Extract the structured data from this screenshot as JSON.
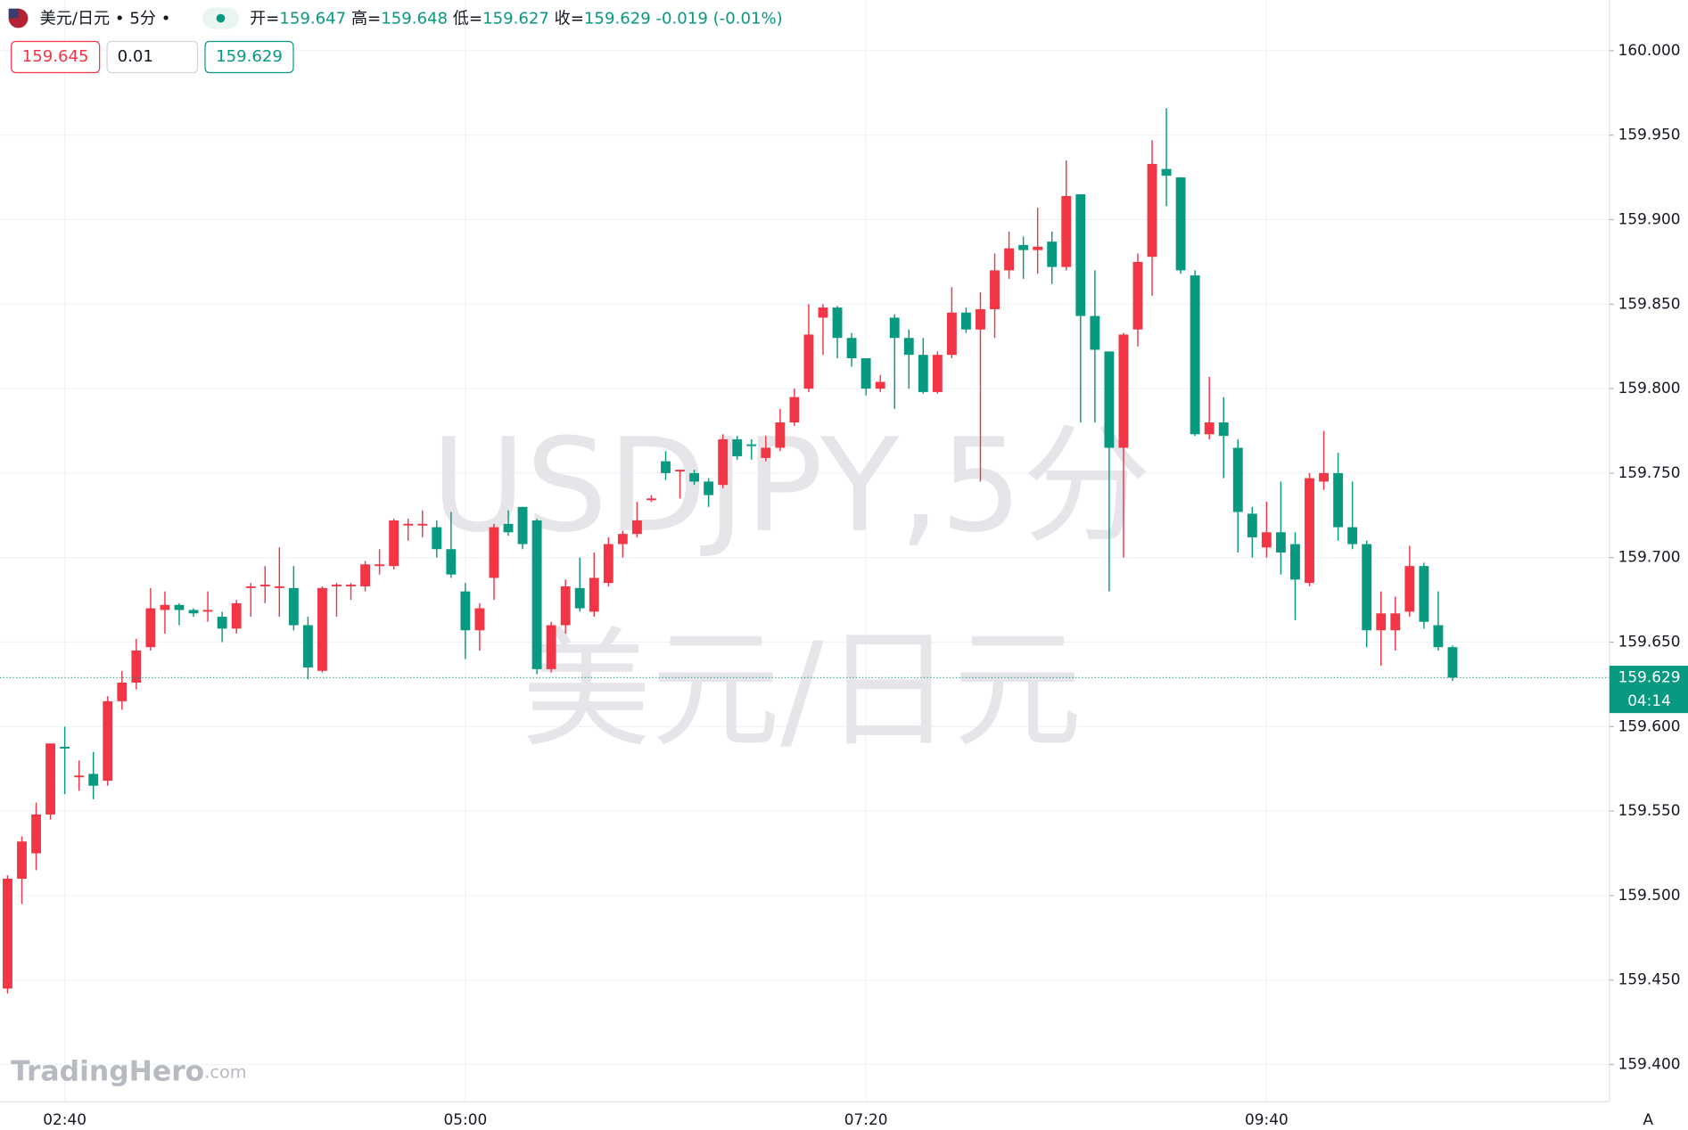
{
  "chart_data": {
    "type": "candlestick",
    "title": "美元/日元",
    "interval": "5分",
    "header_labels": [
      "开=",
      "高=",
      "低=",
      "收="
    ],
    "change": -0.019,
    "change_pct": "(-0.01%)",
    "bid": 159.645,
    "spread": 0.01,
    "countdown": "04:14",
    "watermark": [
      "USDJPY,5分",
      "美元/日元"
    ],
    "logo": "TradingHero",
    "logo_suffix": ".com",
    "scale_button": "A",
    "up_color": "#f23645",
    "down_color": "#089981",
    "grid": true,
    "categories": [
      null,
      null,
      null,
      null,
      "02:40",
      null,
      null,
      null,
      null,
      null,
      null,
      null,
      null,
      null,
      null,
      null,
      null,
      null,
      null,
      null,
      null,
      null,
      null,
      null,
      null,
      null,
      null,
      null,
      null,
      null,
      null,
      null,
      "05:00",
      null,
      null,
      null,
      null,
      null,
      null,
      null,
      null,
      null,
      null,
      null,
      null,
      null,
      null,
      null,
      null,
      null,
      null,
      null,
      null,
      null,
      null,
      null,
      null,
      null,
      null,
      null,
      "07:20",
      null,
      null,
      null,
      null,
      null,
      null,
      null,
      null,
      null,
      null,
      null,
      null,
      null,
      null,
      null,
      null,
      null,
      null,
      null,
      null,
      null,
      null,
      null,
      null,
      null,
      null,
      null,
      "09:40",
      null,
      null,
      null,
      null,
      null,
      null,
      null,
      null,
      null,
      null,
      null,
      null,
      null
    ],
    "open": [
      159.445,
      159.51,
      159.525,
      159.548,
      159.588,
      159.57,
      159.572,
      159.568,
      159.615,
      159.626,
      159.647,
      159.669,
      159.672,
      159.669,
      159.668,
      159.665,
      159.658,
      159.682,
      159.683,
      159.682,
      159.682,
      159.66,
      159.633,
      159.683,
      159.683,
      159.683,
      159.695,
      159.695,
      159.719,
      159.719,
      159.718,
      159.705,
      159.68,
      159.657,
      159.688,
      159.72,
      159.73,
      159.722,
      159.634,
      159.66,
      159.682,
      159.668,
      159.685,
      159.708,
      159.714,
      159.734,
      159.757,
      159.751,
      159.75,
      159.745,
      159.743,
      159.77,
      159.767,
      159.759,
      159.765,
      159.78,
      159.8,
      159.842,
      159.848,
      159.83,
      159.818,
      159.8,
      159.842,
      159.83,
      159.82,
      159.798,
      159.82,
      159.845,
      159.835,
      159.847,
      159.87,
      159.885,
      159.882,
      159.887,
      159.872,
      159.915,
      159.843,
      159.822,
      159.765,
      159.835,
      159.878,
      159.93,
      159.925,
      159.867,
      159.773,
      159.78,
      159.765,
      159.726,
      159.706,
      159.715,
      159.708,
      159.685,
      159.745,
      159.75,
      159.718,
      159.708,
      159.657,
      159.657,
      159.668,
      159.695,
      159.66,
      159.647
    ],
    "high": [
      159.512,
      159.535,
      159.555,
      159.59,
      159.6,
      159.58,
      159.585,
      159.618,
      159.633,
      159.652,
      159.682,
      159.68,
      159.673,
      159.67,
      159.68,
      159.668,
      159.675,
      159.685,
      159.695,
      159.706,
      159.695,
      159.665,
      159.683,
      159.685,
      159.685,
      159.698,
      159.705,
      159.723,
      159.723,
      159.728,
      159.722,
      159.727,
      159.685,
      159.673,
      159.72,
      159.728,
      159.73,
      159.723,
      159.662,
      159.687,
      159.7,
      159.703,
      159.712,
      159.716,
      159.733,
      159.737,
      159.763,
      159.752,
      159.752,
      159.747,
      159.773,
      159.772,
      159.77,
      159.772,
      159.788,
      159.8,
      159.85,
      159.85,
      159.849,
      159.833,
      159.818,
      159.808,
      159.844,
      159.835,
      159.83,
      159.822,
      159.86,
      159.848,
      159.857,
      159.88,
      159.893,
      159.89,
      159.907,
      159.893,
      159.935,
      159.915,
      159.87,
      159.822,
      159.833,
      159.88,
      159.947,
      159.966,
      159.925,
      159.87,
      159.807,
      159.795,
      159.77,
      159.73,
      159.733,
      159.745,
      159.715,
      159.75,
      159.775,
      159.762,
      159.745,
      159.71,
      159.68,
      159.677,
      159.707,
      159.697,
      159.68,
      159.648
    ],
    "low": [
      159.442,
      159.495,
      159.515,
      159.545,
      159.56,
      159.562,
      159.557,
      159.565,
      159.61,
      159.622,
      159.645,
      159.655,
      159.66,
      159.665,
      159.662,
      159.65,
      159.655,
      159.665,
      159.673,
      159.665,
      159.657,
      159.628,
      159.632,
      159.665,
      159.675,
      159.68,
      159.69,
      159.693,
      159.71,
      159.712,
      159.7,
      159.688,
      159.64,
      159.645,
      159.675,
      159.713,
      159.705,
      159.631,
      159.632,
      159.655,
      159.668,
      159.665,
      159.683,
      159.7,
      159.712,
      159.733,
      159.746,
      159.735,
      159.743,
      159.73,
      159.741,
      159.758,
      159.758,
      159.757,
      159.763,
      159.778,
      159.798,
      159.82,
      159.818,
      159.813,
      159.796,
      159.798,
      159.788,
      159.8,
      159.797,
      159.797,
      159.818,
      159.833,
      159.745,
      159.83,
      159.865,
      159.865,
      159.868,
      159.862,
      159.87,
      159.78,
      159.78,
      159.68,
      159.7,
      159.825,
      159.855,
      159.908,
      159.868,
      159.772,
      159.77,
      159.747,
      159.703,
      159.7,
      159.7,
      159.69,
      159.663,
      159.683,
      159.74,
      159.71,
      159.705,
      159.647,
      159.636,
      159.645,
      159.665,
      159.658,
      159.645,
      159.627
    ],
    "close": [
      159.51,
      159.532,
      159.548,
      159.59,
      159.587,
      159.571,
      159.565,
      159.615,
      159.626,
      159.645,
      159.67,
      159.672,
      159.669,
      159.667,
      159.669,
      159.658,
      159.673,
      159.683,
      159.684,
      159.683,
      159.66,
      159.635,
      159.682,
      159.684,
      159.684,
      159.696,
      159.696,
      159.722,
      159.72,
      159.72,
      159.705,
      159.69,
      159.657,
      159.67,
      159.718,
      159.715,
      159.708,
      159.634,
      159.66,
      159.683,
      159.67,
      159.688,
      159.708,
      159.714,
      159.722,
      159.735,
      159.75,
      159.752,
      159.745,
      159.737,
      159.77,
      159.76,
      159.766,
      159.765,
      159.78,
      159.795,
      159.832,
      159.848,
      159.83,
      159.818,
      159.8,
      159.804,
      159.83,
      159.82,
      159.798,
      159.82,
      159.845,
      159.835,
      159.847,
      159.87,
      159.883,
      159.882,
      159.884,
      159.872,
      159.914,
      159.843,
      159.823,
      159.765,
      159.832,
      159.875,
      159.933,
      159.926,
      159.87,
      159.773,
      159.78,
      159.772,
      159.727,
      159.712,
      159.715,
      159.703,
      159.687,
      159.747,
      159.75,
      159.718,
      159.708,
      159.657,
      159.667,
      159.667,
      159.695,
      159.662,
      159.647,
      159.629
    ],
    "ylim": [
      159.378,
      160.03
    ],
    "yticks": [
      {
        "value": 159.4,
        "label": "159.400"
      },
      {
        "value": 159.45,
        "label": "159.450"
      },
      {
        "value": 159.5,
        "label": "159.500"
      },
      {
        "value": 159.55,
        "label": "159.550"
      },
      {
        "value": 159.6,
        "label": "159.600"
      },
      {
        "value": 159.65,
        "label": "159.650"
      },
      {
        "value": 159.7,
        "label": "159.700"
      },
      {
        "value": 159.75,
        "label": "159.750"
      },
      {
        "value": 159.8,
        "label": "159.800"
      },
      {
        "value": 159.85,
        "label": "159.850"
      },
      {
        "value": 159.9,
        "label": "159.900"
      },
      {
        "value": 159.95,
        "label": "159.950"
      },
      {
        "value": 160,
        "label": "160.000"
      }
    ]
  }
}
